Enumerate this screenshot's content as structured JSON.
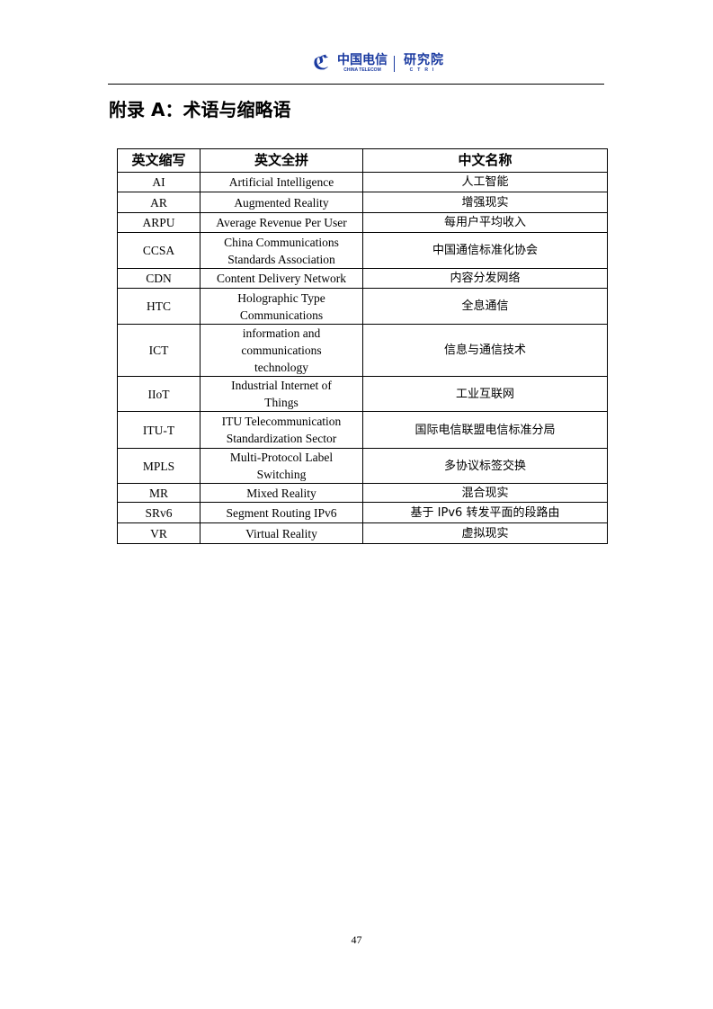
{
  "header": {
    "logo_cn": "中国电信",
    "logo_en": "CHINA TELECOM",
    "institute_cn": "研究院",
    "institute_en": "CTRI"
  },
  "title": "附录 A：术语与缩略语",
  "table": {
    "columns": [
      "英文缩写",
      "英文全拼",
      "中文名称"
    ],
    "rows": [
      [
        "AI",
        "Artificial Intelligence",
        "人工智能"
      ],
      [
        "AR",
        "Augmented Reality",
        "增强现实"
      ],
      [
        "ARPU",
        "Average Revenue Per User",
        "每用户平均收入"
      ],
      [
        "CCSA",
        "China Communications Standards Association",
        "中国通信标准化协会"
      ],
      [
        "CDN",
        "Content Delivery Network",
        "内容分发网络"
      ],
      [
        "HTC",
        "Holographic Type Communications",
        "全息通信"
      ],
      [
        "ICT",
        "information and communications technology",
        "信息与通信技术"
      ],
      [
        "IIoT",
        "Industrial Internet of Things",
        "工业互联网"
      ],
      [
        "ITU-T",
        "ITU Telecommunication Standardization Sector",
        "国际电信联盟电信标准分局"
      ],
      [
        "MPLS",
        "Multi-Protocol Label Switching",
        "多协议标签交换"
      ],
      [
        "MR",
        "Mixed Reality",
        "混合现实"
      ],
      [
        "SRv6",
        "Segment Routing IPv6",
        "基于 IPv6 转发平面的段路由"
      ],
      [
        "VR",
        "Virtual Reality",
        "虚拟现实"
      ]
    ]
  },
  "page_number": "47"
}
